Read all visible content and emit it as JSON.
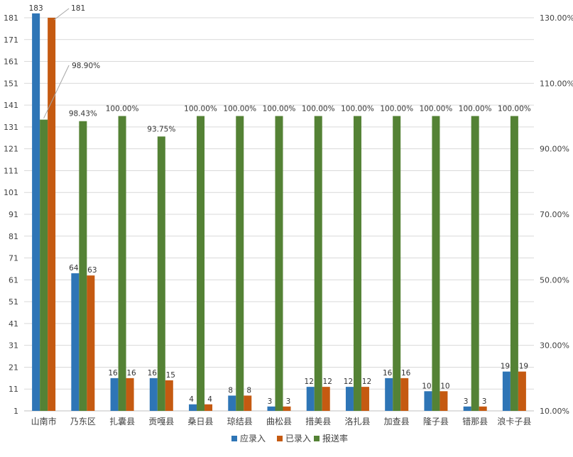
{
  "chart_data": {
    "type": "bar",
    "categories": [
      "山南市",
      "乃东区",
      "扎囊县",
      "贡嘎县",
      "桑日县",
      "琼结县",
      "曲松县",
      "措美县",
      "洛扎县",
      "加查县",
      "隆子县",
      "错那县",
      "浪卡子县"
    ],
    "series": [
      {
        "name": "应录入",
        "axis": "left",
        "color": "#2E75B6",
        "values": [
          183,
          64,
          16,
          16,
          4,
          8,
          3,
          12,
          12,
          16,
          10,
          3,
          19
        ]
      },
      {
        "name": "已录入",
        "axis": "left",
        "color": "#C55A11",
        "values": [
          181,
          63,
          16,
          15,
          4,
          8,
          3,
          12,
          12,
          16,
          10,
          3,
          19
        ]
      },
      {
        "name": "报送率",
        "axis": "right",
        "color": "#548235",
        "values": [
          98.9,
          98.43,
          100.0,
          93.75,
          100.0,
          100.0,
          100.0,
          100.0,
          100.0,
          100.0,
          100.0,
          100.0,
          100.0
        ]
      }
    ],
    "data_labels": {
      "应录入": [
        "183",
        "64",
        "16",
        "16",
        "4",
        "8",
        "3",
        "12",
        "12",
        "16",
        "10",
        "3",
        "19"
      ],
      "已录入": [
        "181",
        "63",
        "16",
        "15",
        "4",
        "8",
        "3",
        "12",
        "12",
        "16",
        "10",
        "3",
        "19"
      ],
      "报送率": [
        "98.90%",
        "98.43%",
        "100.00%",
        "93.75%",
        "100.00%",
        "100.00%",
        "100.00%",
        "100.00%",
        "100.00%",
        "100.00%",
        "100.00%",
        "100.00%",
        "100.00%"
      ]
    },
    "y_left": {
      "min": 1,
      "max": 181,
      "ticks": [
        1,
        11,
        21,
        31,
        41,
        51,
        61,
        71,
        81,
        91,
        101,
        111,
        121,
        131,
        141,
        151,
        161,
        171,
        181
      ]
    },
    "y_right": {
      "min": 10,
      "max": 130,
      "ticks": [
        10,
        30,
        50,
        70,
        90,
        110,
        130
      ],
      "tick_labels": [
        "10.00%",
        "30.00%",
        "50.00%",
        "70.00%",
        "90.00%",
        "110.00%",
        "130.00%"
      ]
    },
    "legend": {
      "position": "bottom"
    },
    "grid": true
  }
}
